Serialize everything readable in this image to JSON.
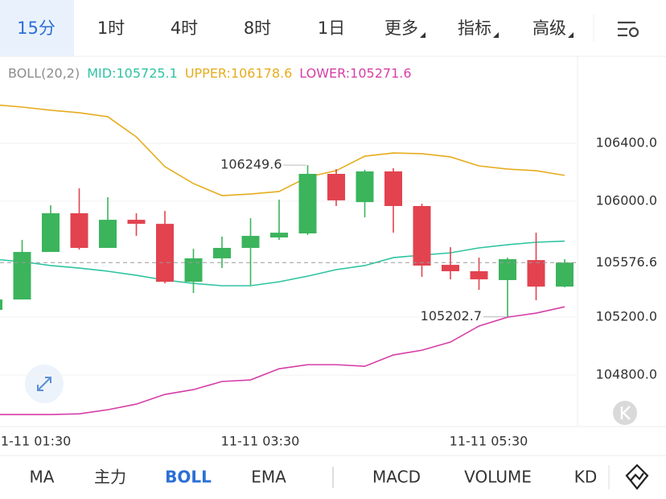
{
  "top_tabs": {
    "items": [
      "15分",
      "1时",
      "4时",
      "8时",
      "1日",
      "更多",
      "指标",
      "高级"
    ],
    "selected": 0,
    "dropdown": [
      5,
      6,
      7
    ]
  },
  "legend": [
    {
      "text": "BOLL(20,2)",
      "color": "#8c8c8c"
    },
    {
      "text": "MID:105725.1",
      "color": "#2ec4a0"
    },
    {
      "text": "UPPER:106178.6",
      "color": "#e6ac1e"
    },
    {
      "text": "LOWER:105271.6",
      "color": "#d63ea6"
    }
  ],
  "chart_data": {
    "type": "candlestick",
    "categories": [
      null,
      "11-11 01:30",
      null,
      null,
      null,
      null,
      null,
      null,
      null,
      "11-11 03:30",
      null,
      null,
      null,
      null,
      null,
      null,
      null,
      "11-11 05:30",
      null,
      null,
      null
    ],
    "open": [
      105250,
      105322,
      105650,
      105917,
      105678,
      105872,
      105844,
      105444,
      105606,
      105678,
      105750,
      105778,
      106189,
      105994,
      106206,
      105967,
      105561,
      105517,
      105456,
      105594,
      105411
    ],
    "high": [
      105340,
      105733,
      105972,
      106089,
      106028,
      105917,
      105933,
      105672,
      105756,
      105883,
      106011,
      106249.6,
      106222,
      106217,
      106228,
      105983,
      105683,
      105611,
      105611,
      105783,
      105600
    ],
    "low": [
      105230,
      105322,
      105650,
      105667,
      105678,
      105761,
      105433,
      105367,
      105539,
      105422,
      105733,
      105767,
      105967,
      105889,
      105783,
      105478,
      105461,
      105389,
      105202.7,
      105317,
      105406
    ],
    "close": [
      105322,
      105650,
      105917,
      105678,
      105872,
      105844,
      105444,
      105606,
      105678,
      105761,
      105783,
      106189,
      106006,
      106206,
      105967,
      105556,
      105517,
      105461,
      105600,
      105411,
      105576.6
    ],
    "up_color": "#3bb45c",
    "down_color": "#e2434f",
    "series": [
      {
        "color": "#e6ac1e",
        "values": [
          106667,
          106650,
          106628,
          106611,
          106583,
          106444,
          106239,
          106122,
          106039,
          106050,
          106067,
          106167,
          106211,
          106311,
          106333,
          106328,
          106306,
          106244,
          106222,
          106211,
          106178.6
        ]
      },
      {
        "color": "#2ec4a0",
        "values": [
          105600,
          105583,
          105556,
          105539,
          105517,
          105489,
          105456,
          105433,
          105417,
          105417,
          105444,
          105483,
          105528,
          105556,
          105611,
          105628,
          105644,
          105678,
          105700,
          105717,
          105725.1
        ]
      },
      {
        "color": "#d63ea6",
        "values": [
          104528,
          104528,
          104528,
          104533,
          104561,
          104600,
          104667,
          104700,
          104756,
          104767,
          104844,
          104872,
          104872,
          104861,
          104939,
          104972,
          105028,
          105139,
          105200,
          105228,
          105271.6
        ]
      }
    ],
    "ylim": [
      104445,
      107000
    ],
    "yticks": [
      {
        "value": 104800,
        "label": "104800.0"
      },
      {
        "value": 105200,
        "label": "105200.0"
      },
      {
        "value": 106000,
        "label": "106000.0"
      },
      {
        "value": 106400,
        "label": "106400.0"
      }
    ],
    "grid": true
  },
  "bottom_tabs": {
    "items": [
      "MA",
      "主力",
      "BOLL",
      "EMA",
      "MACD",
      "VOLUME",
      "KD"
    ],
    "selected": 2
  }
}
